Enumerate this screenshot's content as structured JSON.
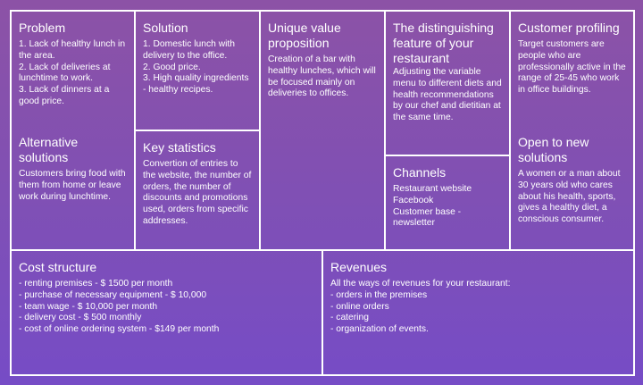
{
  "problem": {
    "title": "Problem",
    "text": "1. Lack of healthy lunch in the area.\n2. Lack of deliveries at lunchtime to work.\n3. Lack of dinners at a good price."
  },
  "alternatives": {
    "title": "Alternative solutions",
    "text": "Customers bring food with them from home or leave work during lunchtime."
  },
  "solution": {
    "title": "Solution",
    "text": "1. Domestic lunch with delivery to the office.\n2. Good price.\n3. High quality ingredients - healthy recipes."
  },
  "key_statistics": {
    "title": "Key statistics",
    "text": "Convertion of entries to the website, the number of orders, the number of discounts and promotions used, orders from specific addresses."
  },
  "uvp": {
    "title": "Unique value proposition",
    "text": "Creation of a bar with healthy lunches, which will be focused mainly on deliveries to offices."
  },
  "distinguishing": {
    "title": "The distinguishing feature of your restaurant",
    "text": "Adjusting the variable menu to different diets and health recommendations by our chef and dietitian at the same time."
  },
  "channels": {
    "title": "Channels",
    "text": "Restaurant website\nFacebook\nCustomer base - newsletter"
  },
  "customer": {
    "title": "Customer profiling",
    "text": "Target customers are people who are professionally active in the range of 25-45 who work in office buildings."
  },
  "open": {
    "title": "Open to new solutions",
    "text": "A women or a man about 30 years old who cares about his health, sports, gives a healthy diet, a conscious consumer."
  },
  "cost": {
    "title": "Cost structure",
    "text": "- renting premises - $ 1500 per month\n- purchase of necessary equipment - $ 10,000\n- team wage - $ 10,000 per month\n- delivery cost - $ 500 monthly\n- cost of online ordering system - $149 per month"
  },
  "revenues": {
    "title": "Revenues",
    "text": "All the ways of revenues for your restaurant:\n- orders in the premises\n- online orders\n- catering\n- organization of events."
  }
}
